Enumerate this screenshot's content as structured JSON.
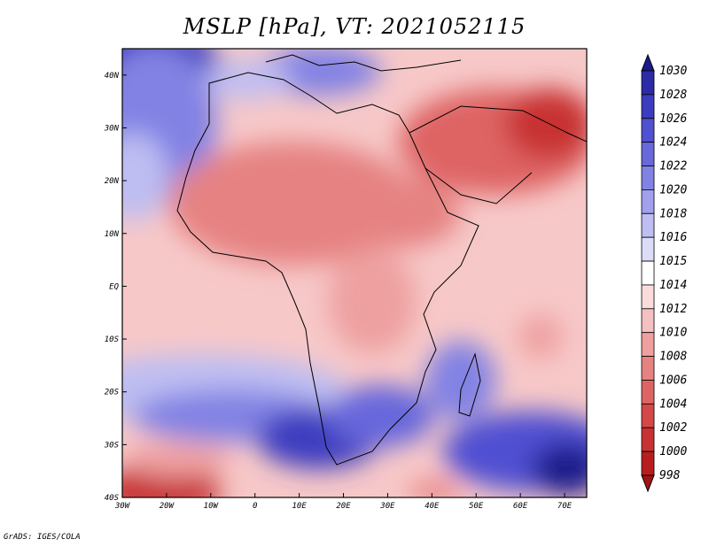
{
  "title": "MSLP [hPa], VT: 2021052115",
  "credit": "GrADS: IGES/COLA",
  "map": {
    "lon_ticks": [
      "30W",
      "20W",
      "10W",
      "0",
      "10E",
      "20E",
      "30E",
      "40E",
      "50E",
      "60E",
      "70E"
    ],
    "lat_ticks": [
      "40N",
      "30N",
      "20N",
      "10N",
      "EQ",
      "10S",
      "20S",
      "30S",
      "40S"
    ],
    "lon_range": [
      -30,
      75
    ],
    "lat_range": [
      -40,
      45
    ]
  },
  "colorbar": {
    "levels": [
      "1030",
      "1028",
      "1026",
      "1024",
      "1022",
      "1020",
      "1018",
      "1016",
      "1015",
      "1014",
      "1012",
      "1010",
      "1008",
      "1006",
      "1004",
      "1002",
      "1000",
      "998"
    ],
    "colors": [
      "#1a1a8c",
      "#2b2ba8",
      "#3c3cc0",
      "#5050d2",
      "#6868dc",
      "#8282e4",
      "#a0a0ec",
      "#bebef2",
      "#dcdcf8",
      "#ffffff",
      "#fadcdc",
      "#f5c0c0",
      "#eea0a0",
      "#e68282",
      "#de6464",
      "#d44848",
      "#c83232",
      "#b81e1e",
      "#a01414"
    ]
  }
}
